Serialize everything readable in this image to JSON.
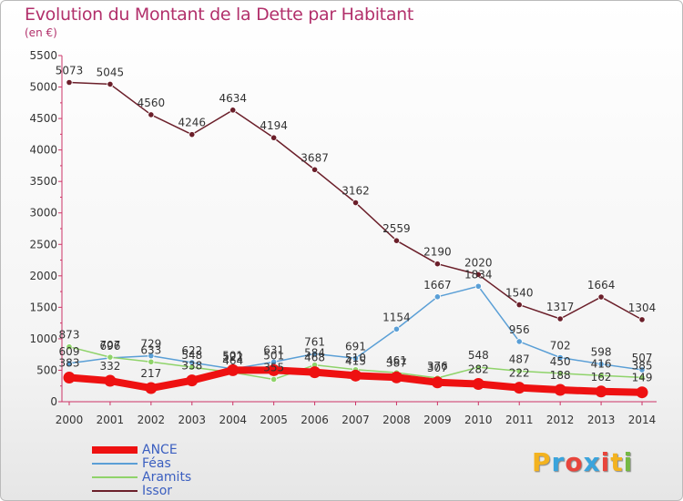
{
  "header": {
    "title": "Evolution du Montant de la Dette par Habitant",
    "subtitle": "(en €)"
  },
  "brand": {
    "letters": [
      "P",
      "r",
      "o",
      "x",
      "i",
      "t",
      "i"
    ],
    "colors": [
      "#f3b320",
      "#3aa4dc",
      "#e8453c",
      "#3aa4dc",
      "#e8453c",
      "#f3b320",
      "#75b944"
    ]
  },
  "chart_data": {
    "type": "line",
    "title": "Evolution du Montant de la Dette par Habitant",
    "subtitle": "(en €)",
    "xlabel": "",
    "ylabel": "",
    "x": [
      "2000",
      "2001",
      "2002",
      "2003",
      "2004",
      "2005",
      "2006",
      "2007",
      "2008",
      "2009",
      "2010",
      "2011",
      "2012",
      "2013",
      "2014"
    ],
    "ylim": [
      0,
      5500
    ],
    "yticks": [
      0,
      500,
      1000,
      1500,
      2000,
      2500,
      3000,
      3500,
      4000,
      4500,
      5000,
      5500
    ],
    "grid": false,
    "legend_position": "bottom-left",
    "series": [
      {
        "name": "Issor",
        "color": "#6b1f2a",
        "width": 1.5,
        "values": [
          5073,
          5045,
          4560,
          4246,
          4634,
          4194,
          3687,
          3162,
          2559,
          2190,
          2020,
          1540,
          1317,
          1664,
          1304
        ]
      },
      {
        "name": "Féas",
        "color": "#5a9fd6",
        "width": 1.5,
        "values": [
          609,
          696,
          729,
          622,
          522,
          631,
          761,
          691,
          1154,
          1667,
          1834,
          956,
          702,
          598,
          507
        ]
      },
      {
        "name": "Aramits",
        "color": "#8fd36a",
        "width": 1.5,
        "values": [
          873,
          707,
          633,
          548,
          464,
          355,
          584,
          510,
          461,
          376,
          548,
          487,
          450,
          416,
          385
        ]
      },
      {
        "name": "ANCE",
        "color": "#ee1111",
        "width": 8,
        "values": [
          383,
          332,
          217,
          338,
          501,
          501,
          468,
          415,
          387,
          307,
          282,
          222,
          188,
          162,
          149
        ]
      }
    ],
    "data_labels": [
      {
        "series": "Issor",
        "labels": [
          "5073",
          "5045",
          "4560",
          "4246",
          "4634",
          "4194",
          "3687",
          "3162",
          "2559",
          "2190",
          "2020",
          "1540",
          "1317",
          "1664",
          "1304"
        ]
      },
      {
        "series": "Féas",
        "labels": [
          "609",
          "696",
          "729",
          "622",
          "522",
          "631",
          "761",
          "691",
          "1154",
          "1667",
          "1834",
          "956",
          "702",
          "598",
          "507"
        ]
      },
      {
        "series": "Aramits",
        "labels": [
          "873",
          "707",
          "633",
          "548",
          "464",
          "355",
          "584",
          "510",
          "461",
          "376",
          "548",
          "487",
          "450",
          "416",
          "385"
        ]
      },
      {
        "series": "ANCE",
        "labels": [
          "383",
          "332",
          "217",
          "338",
          "501",
          "501",
          "468",
          "415",
          "387",
          "307",
          "282",
          "222",
          "188",
          "162",
          "149"
        ]
      }
    ]
  },
  "legend": {
    "items": [
      {
        "label": "ANCE",
        "color": "#ee1111",
        "width": 8
      },
      {
        "label": "Féas",
        "color": "#5a9fd6",
        "width": 2
      },
      {
        "label": "Aramits",
        "color": "#8fd36a",
        "width": 2
      },
      {
        "label": "Issor",
        "color": "#6b1f2a",
        "width": 2
      }
    ]
  }
}
